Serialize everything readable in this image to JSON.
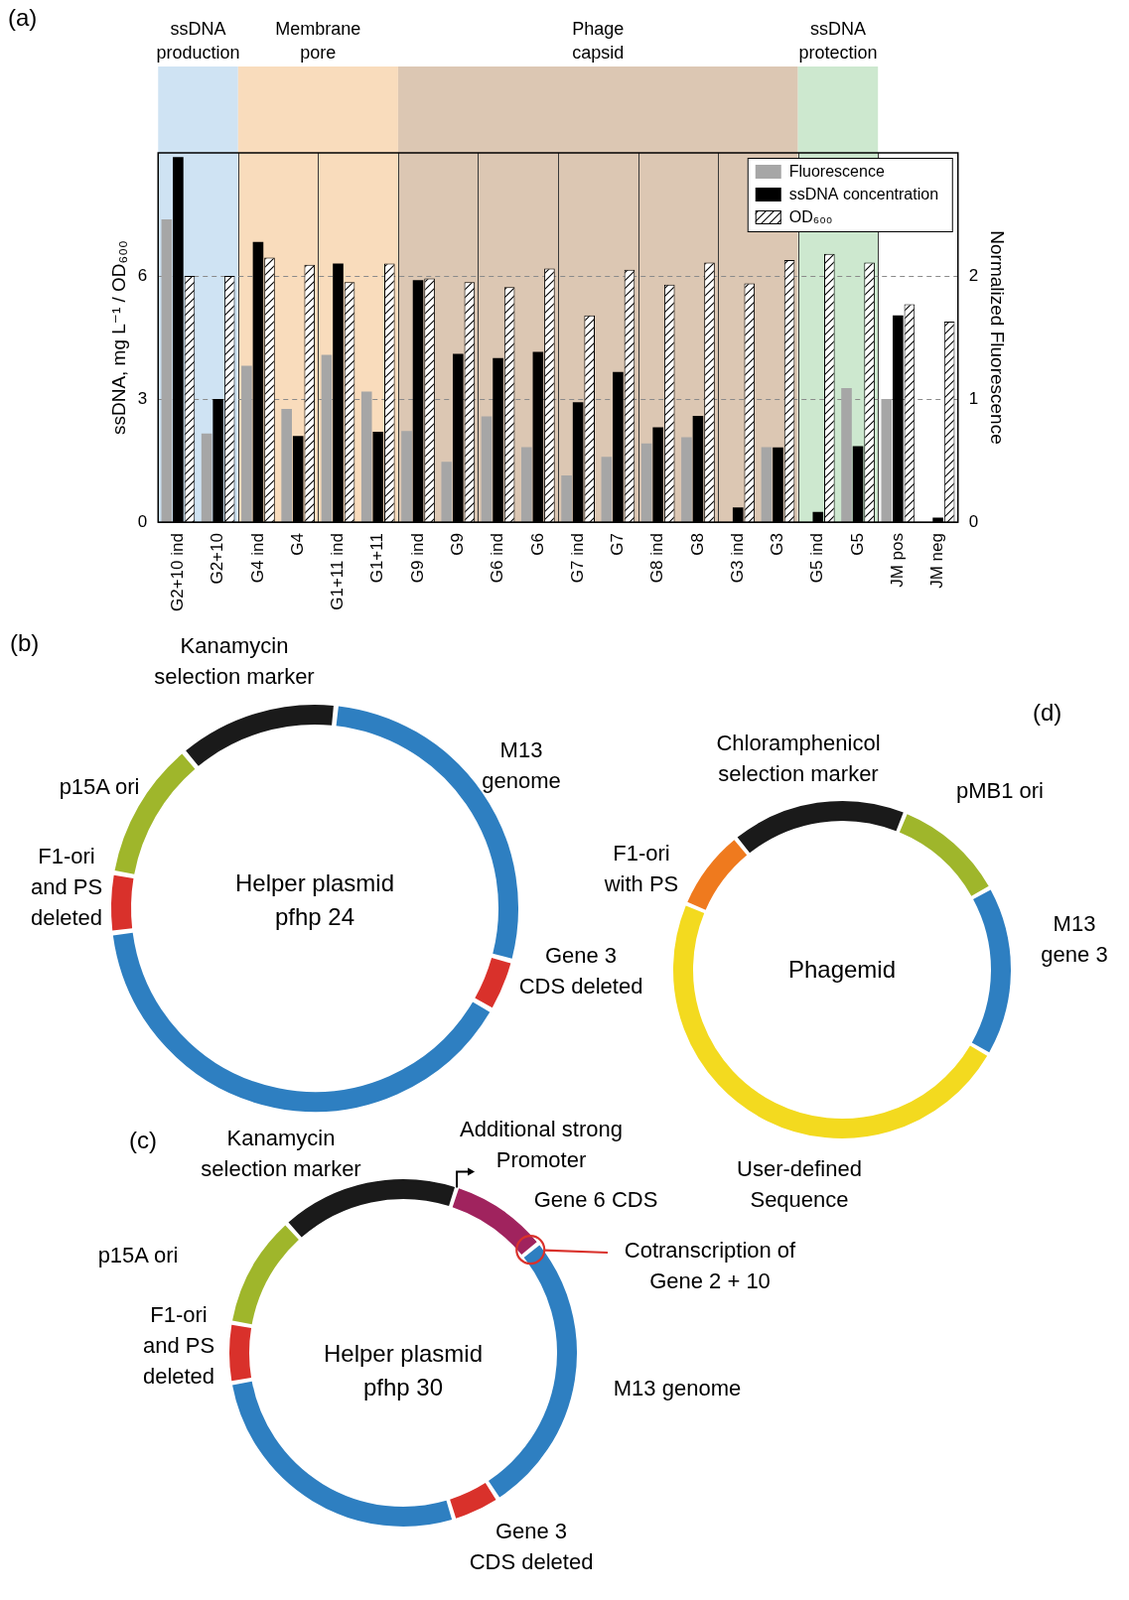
{
  "chart_data": {
    "type": "bar",
    "panel": "(a)",
    "categories": [
      "G2+10 ind",
      "G2+10",
      "G4 ind",
      "G4",
      "G1+11 ind",
      "G1+11",
      "G9 ind",
      "G9",
      "G6 ind",
      "G6",
      "G7 ind",
      "G7",
      "G8 ind",
      "G8",
      "G3 ind",
      "G3",
      "G5 ind",
      "G5",
      "JM pos",
      "JM neg"
    ],
    "groups": [
      {
        "label": "ssDNA production",
        "color": "#cfe3f3",
        "members": [
          "G2+10 ind",
          "G2+10"
        ]
      },
      {
        "label": "Membrane pore",
        "color": "#f9dcbc",
        "members": [
          "G4 ind",
          "G4",
          "G1+11 ind",
          "G1+11"
        ]
      },
      {
        "label": "Phage capsid",
        "color": "#dcc7b3",
        "members": [
          "G9 ind",
          "G9",
          "G6 ind",
          "G6",
          "G7 ind",
          "G7",
          "G8 ind",
          "G8",
          "G3 ind",
          "G3"
        ]
      },
      {
        "label": "ssDNA protection",
        "color": "#cde8cf",
        "members": [
          "G5 ind",
          "G5"
        ]
      }
    ],
    "series": [
      {
        "name": "Fluorescence",
        "color": "#a6a6a6",
        "axis": "y2",
        "values": [
          2.46,
          0.72,
          1.27,
          0.92,
          1.36,
          1.06,
          0.74,
          0.49,
          0.86,
          0.61,
          0.38,
          0.53,
          0.64,
          0.69,
          0,
          0.61,
          0,
          1.09,
          1.0,
          0
        ]
      },
      {
        "name": "ssDNA concentration",
        "color": "#000000",
        "values": [
          8.9,
          3.0,
          6.83,
          2.1,
          6.3,
          2.2,
          5.9,
          4.1,
          4.0,
          4.15,
          2.92,
          3.66,
          2.31,
          2.59,
          0.36,
          1.82,
          0.25,
          1.85,
          5.04,
          0.11
        ]
      },
      {
        "name": "OD₆₀₀",
        "color": "#000000",
        "axis": "y2",
        "marker": "hatch",
        "values": [
          2.0,
          2.0,
          2.15,
          2.09,
          1.95,
          2.1,
          1.98,
          1.95,
          1.91,
          2.06,
          1.68,
          2.05,
          1.93,
          2.11,
          1.94,
          2.13,
          2.18,
          2.11,
          1.77,
          1.63
        ]
      }
    ],
    "y_label": "ssDNA, mg L⁻¹ / OD₆₀₀",
    "y2_label": "Normalized Fluorescence",
    "ylim": [
      0,
      9
    ],
    "yticks": [
      0,
      3,
      6
    ],
    "y2lim": [
      0,
      3
    ],
    "y2ticks": [
      0,
      1,
      2
    ],
    "grid": true,
    "legend": "top-right"
  },
  "diagrams": [
    {
      "panel": "(b)",
      "type": "plasmid map",
      "center": "Helper plasmid pfhp 24",
      "segments": [
        {
          "label": "Kanamycin selection marker",
          "color": "#1a1a1a"
        },
        {
          "label": "M13 genome",
          "color": "#2e7fc1"
        },
        {
          "label": "Gene 3 CDS deleted",
          "color": "#d9312b"
        },
        {
          "label": null,
          "color": "#2e7fc1"
        },
        {
          "label": "F1-ori and PS deleted",
          "color": "#d9312b"
        },
        {
          "label": "p15A ori",
          "color": "#9fb62b"
        }
      ]
    },
    {
      "panel": "(c)",
      "type": "plasmid map",
      "center": "Helper plasmid pfhp 30",
      "segments": [
        {
          "label": "Kanamycin selection marker",
          "color": "#1a1a1a"
        },
        {
          "label": "Gene 6 CDS",
          "color": "#a0235e"
        },
        {
          "label": "M13 genome",
          "color": "#2e7fc1"
        },
        {
          "label": "Gene 3 CDS deleted",
          "color": "#d9312b"
        },
        {
          "label": null,
          "color": "#2e7fc1"
        },
        {
          "label": "F1-ori and PS deleted",
          "color": "#d9312b"
        },
        {
          "label": "p15A ori",
          "color": "#9fb62b"
        }
      ],
      "annotations": [
        {
          "label": "Additional strong Promoter",
          "color": "#000000"
        },
        {
          "label": "Cotranscription of Gene 2 + 10",
          "color": "#d9312b"
        }
      ]
    },
    {
      "panel": "(d)",
      "type": "plasmid map",
      "center": "Phagemid",
      "segments": [
        {
          "label": "Chloramphenicol selection marker",
          "color": "#1a1a1a"
        },
        {
          "label": "pMB1 ori",
          "color": "#9fb62b"
        },
        {
          "label": "M13 gene 3",
          "color": "#2e7fc1"
        },
        {
          "label": "User-defined Sequence",
          "color": "#f3da1f"
        },
        {
          "label": "F1-ori with PS",
          "color": "#ef7a1e"
        }
      ]
    }
  ]
}
